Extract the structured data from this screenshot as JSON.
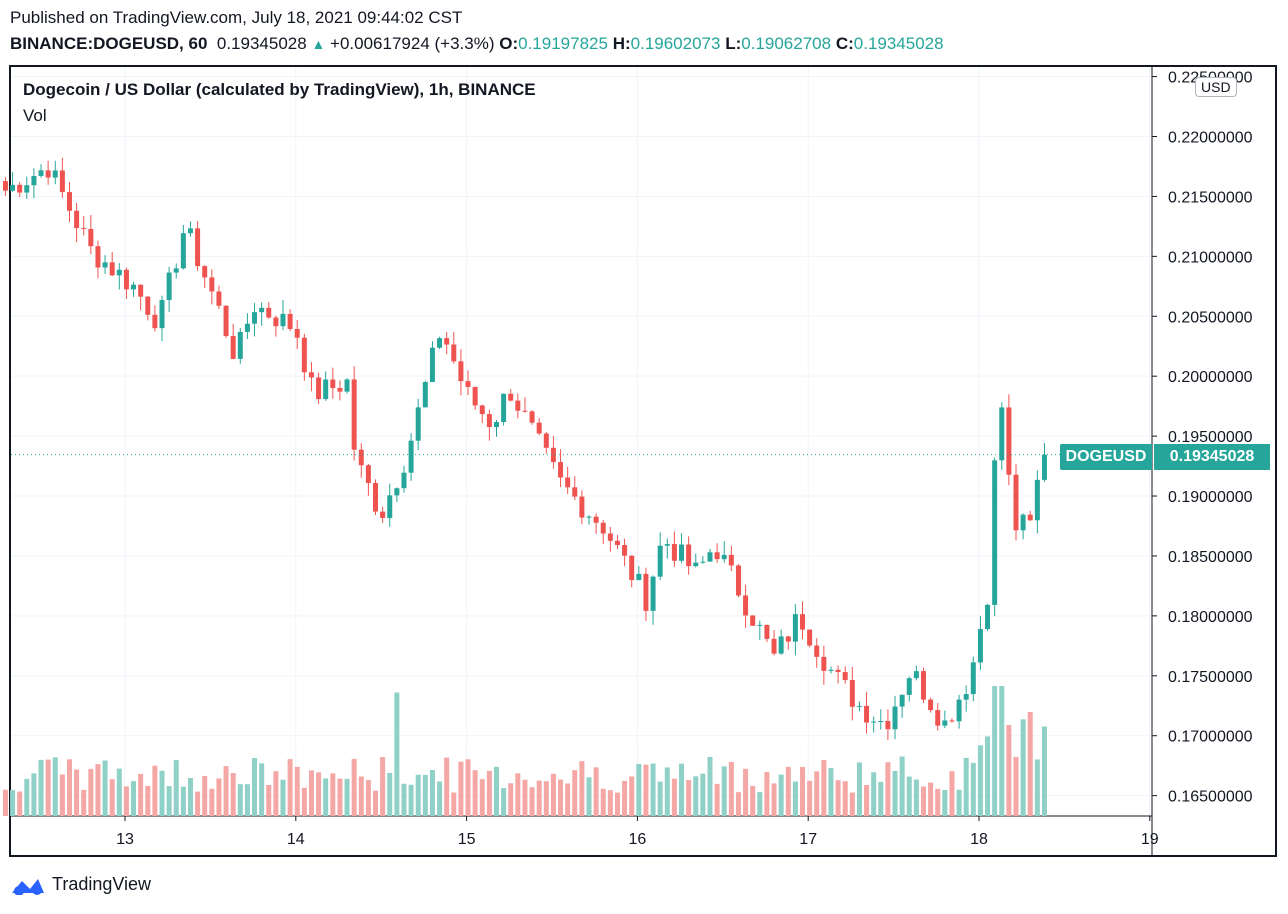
{
  "header": {
    "published": "Published on TradingView.com, July 18, 2021 09:44:02 CST",
    "symbol_interval": "BINANCE:DOGEUSD, 60",
    "last": "0.19345028",
    "change": "+0.00617924 (+3.3%)",
    "o_label": "O:",
    "o_value": "0.19197825",
    "h_label": "H:",
    "h_value": "0.19602073",
    "l_label": "L:",
    "l_value": "0.19062708",
    "c_label": "C:",
    "c_value": "0.19345028"
  },
  "legend": {
    "title": "Dogecoin / US Dollar (calculated by TradingView), 1h, BINANCE",
    "volume": "Vol"
  },
  "price_scale": {
    "currency": "USD",
    "symbol_tag": "DOGEUSD",
    "price_tag": "0.19345028"
  },
  "footer": {
    "brand": "TradingView"
  },
  "colors": {
    "up": "#26a69a",
    "down": "#ef5350",
    "up_vol": "#8fd0c7",
    "down_vol": "#f4a7a4",
    "grid": "#f0f3fa"
  },
  "chart_data": {
    "type": "candlestick",
    "title": "Dogecoin / US Dollar (calculated by TradingView), 1h, BINANCE",
    "ylabel": "USD",
    "ylim": [
      0.1633,
      0.2258
    ],
    "y_ticks": [
      "0.22500000",
      "0.22000000",
      "0.21500000",
      "0.21000000",
      "0.20500000",
      "0.20000000",
      "0.19500000",
      "0.19000000",
      "0.18500000",
      "0.18000000",
      "0.17500000",
      "0.17000000",
      "0.16500000"
    ],
    "x_ticks": [
      "13",
      "14",
      "15",
      "16",
      "17",
      "18",
      "19"
    ],
    "last_price": 0.19345028,
    "series": [
      {
        "name": "DOGEUSD",
        "waypoints": [
          {
            "day": 12.3,
            "price": 0.2155
          },
          {
            "day": 12.55,
            "price": 0.2175
          },
          {
            "day": 12.8,
            "price": 0.2105
          },
          {
            "day": 13.05,
            "price": 0.2075
          },
          {
            "day": 13.2,
            "price": 0.2045
          },
          {
            "day": 13.35,
            "price": 0.2125
          },
          {
            "day": 13.55,
            "price": 0.2055
          },
          {
            "day": 13.65,
            "price": 0.2015
          },
          {
            "day": 13.75,
            "price": 0.206
          },
          {
            "day": 14.0,
            "price": 0.204
          },
          {
            "day": 14.1,
            "price": 0.1985
          },
          {
            "day": 14.3,
            "price": 0.1995
          },
          {
            "day": 14.35,
            "price": 0.193
          },
          {
            "day": 14.5,
            "price": 0.1885
          },
          {
            "day": 14.65,
            "price": 0.1935
          },
          {
            "day": 14.85,
            "price": 0.204
          },
          {
            "day": 15.0,
            "price": 0.1985
          },
          {
            "day": 15.15,
            "price": 0.196
          },
          {
            "day": 15.25,
            "price": 0.199
          },
          {
            "day": 15.45,
            "price": 0.1935
          },
          {
            "day": 15.55,
            "price": 0.191
          },
          {
            "day": 15.8,
            "price": 0.1875
          },
          {
            "day": 16.05,
            "price": 0.1815
          },
          {
            "day": 16.15,
            "price": 0.1865
          },
          {
            "day": 16.35,
            "price": 0.1835
          },
          {
            "day": 16.45,
            "price": 0.186
          },
          {
            "day": 16.6,
            "price": 0.182
          },
          {
            "day": 16.8,
            "price": 0.1765
          },
          {
            "day": 16.95,
            "price": 0.18
          },
          {
            "day": 17.15,
            "price": 0.175
          },
          {
            "day": 17.3,
            "price": 0.1725
          },
          {
            "day": 17.45,
            "price": 0.171
          },
          {
            "day": 17.6,
            "price": 0.1755
          },
          {
            "day": 17.8,
            "price": 0.171
          },
          {
            "day": 17.95,
            "price": 0.175
          },
          {
            "day": 18.05,
            "price": 0.182
          },
          {
            "day": 18.12,
            "price": 0.1995
          },
          {
            "day": 18.2,
            "price": 0.1875
          },
          {
            "day": 18.3,
            "price": 0.1875
          },
          {
            "day": 18.37,
            "price": 0.19345
          }
        ]
      },
      {
        "name": "Vol",
        "relative_volume_peaks": [
          {
            "day": 14.6,
            "level": 0.95
          },
          {
            "day": 18.12,
            "level": 1.0
          },
          {
            "day": 18.3,
            "level": 0.8
          }
        ]
      }
    ],
    "grid": true
  }
}
